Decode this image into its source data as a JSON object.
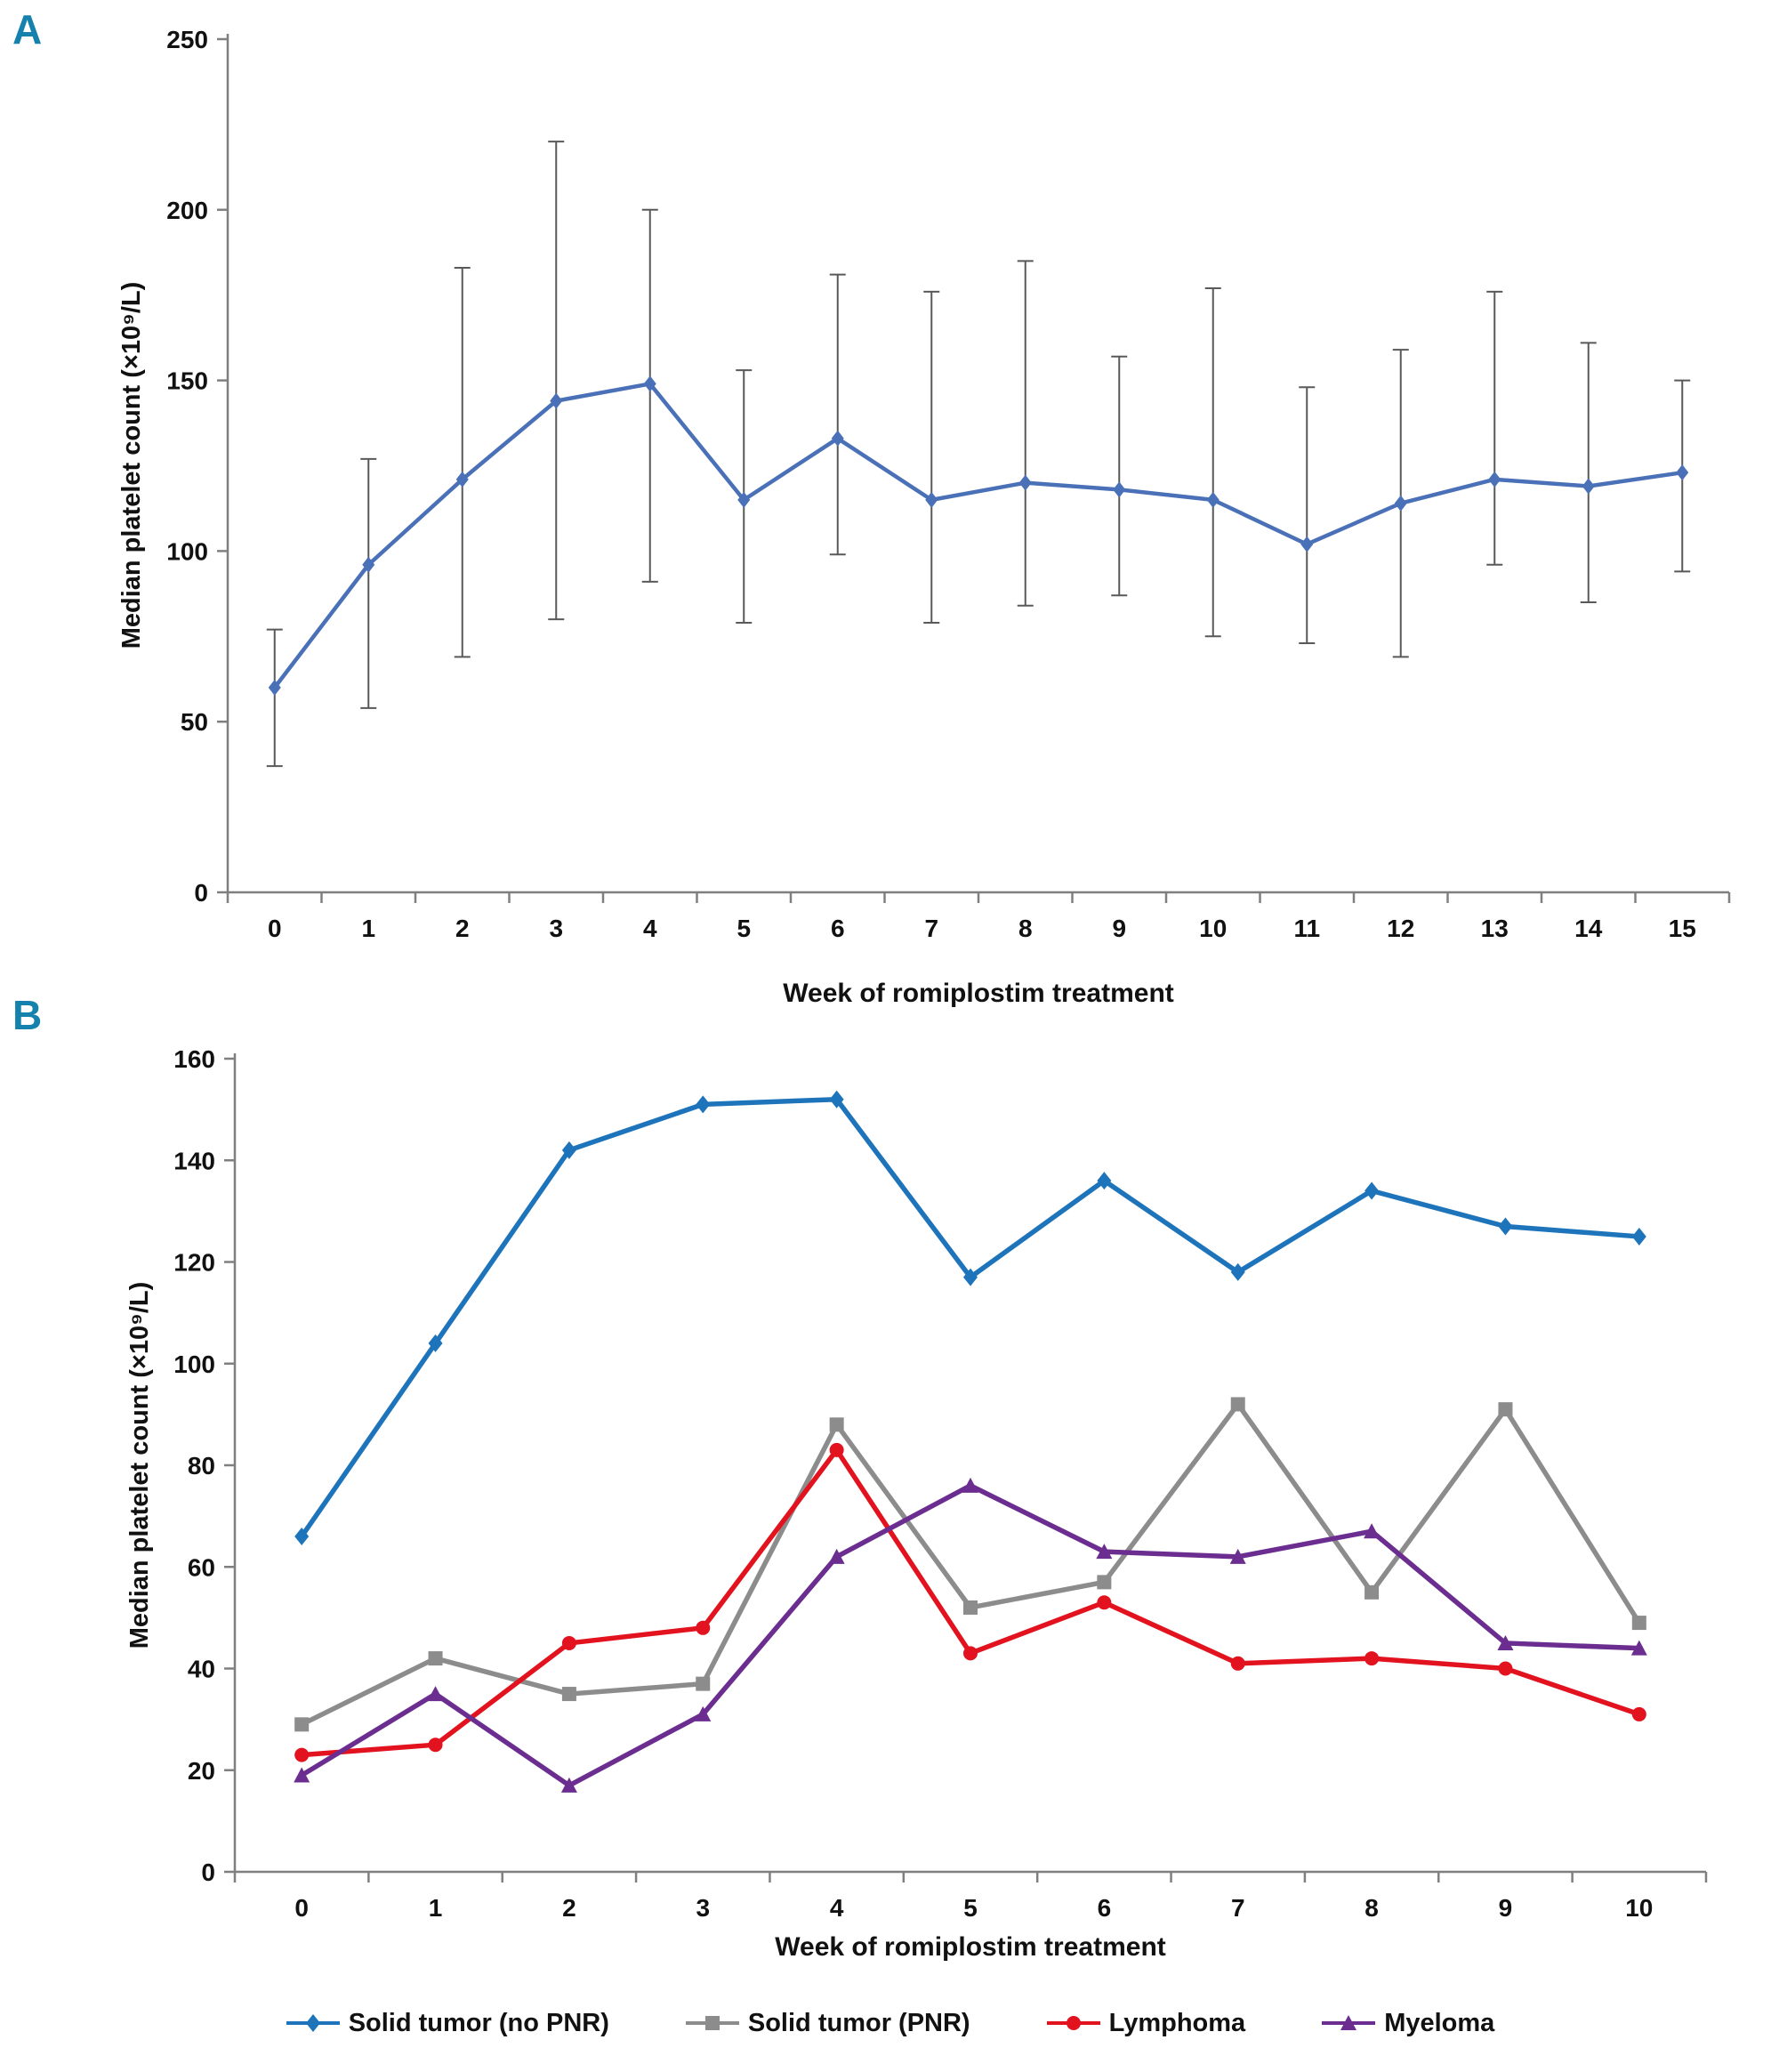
{
  "figure": {
    "background": "#ffffff",
    "panel_label_color": "#1581AD",
    "axis_color": "#7F7F7F",
    "tick_text_color": "#111111"
  },
  "panels": {
    "a": {
      "label": "A"
    },
    "b": {
      "label": "B"
    }
  },
  "chart_data": [
    {
      "type": "line",
      "panel": "A",
      "title": "",
      "xlabel": "Week of romiplostim treatment",
      "ylabel": "Median platelet count (×10⁹/L)",
      "x": [
        "0",
        "1",
        "2",
        "3",
        "4",
        "5",
        "6",
        "7",
        "8",
        "9",
        "10",
        "11",
        "12",
        "13",
        "14",
        "15"
      ],
      "ylim": [
        0,
        250
      ],
      "yticks": [
        0,
        50,
        100,
        150,
        200,
        250
      ],
      "grid": false,
      "legend_position": "none",
      "series": [
        {
          "name": "Median platelet count",
          "color": "#4A70B8",
          "marker": "diamond",
          "values": [
            60,
            96,
            121,
            144,
            149,
            115,
            133,
            115,
            120,
            118,
            115,
            102,
            114,
            121,
            119,
            123
          ],
          "error_low": [
            37,
            54,
            69,
            80,
            91,
            79,
            99,
            79,
            84,
            87,
            75,
            73,
            69,
            96,
            85,
            94
          ],
          "error_high": [
            77,
            127,
            183,
            220,
            200,
            153,
            181,
            176,
            185,
            157,
            177,
            148,
            159,
            176,
            161,
            150
          ],
          "error_color": "#595959"
        }
      ]
    },
    {
      "type": "line",
      "panel": "B",
      "title": "",
      "xlabel": "Week of romiplostim treatment",
      "ylabel": "Median platelet count (×10⁹/L)",
      "x": [
        "0",
        "1",
        "2",
        "3",
        "4",
        "5",
        "6",
        "7",
        "8",
        "9",
        "10"
      ],
      "ylim": [
        0,
        160
      ],
      "yticks": [
        0,
        20,
        40,
        60,
        80,
        100,
        120,
        140,
        160
      ],
      "grid": false,
      "legend_position": "bottom",
      "series": [
        {
          "name": "Solid tumor (no PNR)",
          "color": "#1D74BB",
          "marker": "diamond",
          "values": [
            66,
            104,
            142,
            151,
            152,
            117,
            136,
            118,
            134,
            127,
            125
          ]
        },
        {
          "name": "Solid tumor (PNR)",
          "color": "#8C8C8C",
          "marker": "square",
          "values": [
            29,
            42,
            35,
            37,
            88,
            52,
            57,
            92,
            55,
            91,
            49
          ]
        },
        {
          "name": "Lymphoma",
          "color": "#E2121E",
          "marker": "circle",
          "values": [
            23,
            25,
            45,
            48,
            83,
            43,
            53,
            41,
            42,
            40,
            31
          ]
        },
        {
          "name": "Myeloma",
          "color": "#6B2D90",
          "marker": "triangle",
          "values": [
            19,
            35,
            17,
            31,
            62,
            76,
            63,
            62,
            67,
            45,
            44
          ]
        }
      ]
    }
  ]
}
